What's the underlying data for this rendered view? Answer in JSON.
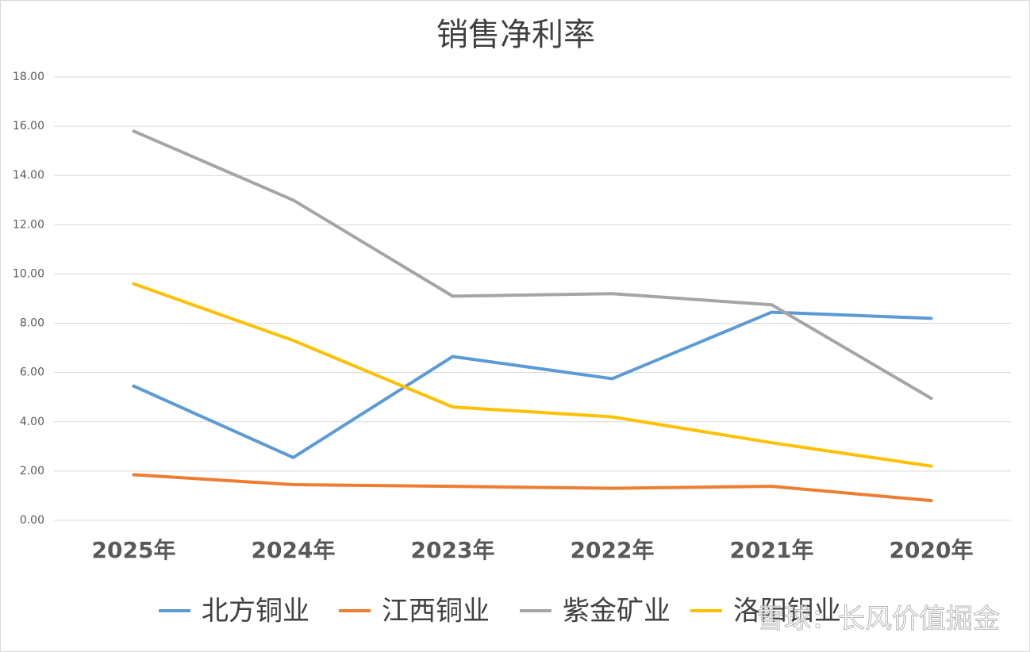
{
  "chart_data": {
    "type": "line",
    "title": "销售净利率",
    "categories": [
      "2025年",
      "2024年",
      "2023年",
      "2022年",
      "2021年",
      "2020年"
    ],
    "series": [
      {
        "name": "北方铜业",
        "color": "#5b9bd5",
        "values": [
          5.45,
          2.55,
          6.65,
          5.75,
          8.45,
          8.2
        ]
      },
      {
        "name": "江西铜业",
        "color": "#ed7d31",
        "values": [
          1.85,
          1.45,
          1.38,
          1.3,
          1.38,
          0.8
        ]
      },
      {
        "name": "紫金矿业",
        "color": "#a5a5a5",
        "values": [
          15.8,
          13.0,
          9.1,
          9.2,
          8.75,
          4.95
        ]
      },
      {
        "name": "洛阳钼业",
        "color": "#ffc000",
        "values": [
          9.6,
          7.3,
          4.6,
          4.2,
          3.15,
          2.2
        ]
      }
    ],
    "ylim": [
      0,
      18
    ],
    "yticks": [
      {
        "value": 0,
        "label": "0.00"
      },
      {
        "value": 2,
        "label": "2.00"
      },
      {
        "value": 4,
        "label": "4.00"
      },
      {
        "value": 6,
        "label": "6.00"
      },
      {
        "value": 8,
        "label": "8.00"
      },
      {
        "value": 10,
        "label": "10.00"
      },
      {
        "value": 12,
        "label": "12.00"
      },
      {
        "value": 14,
        "label": "14.00"
      },
      {
        "value": 16,
        "label": "16.00"
      },
      {
        "value": 18,
        "label": "18.00"
      }
    ],
    "grid": true,
    "legend": "bottom",
    "watermark": "雪球：长风价值掘金"
  }
}
